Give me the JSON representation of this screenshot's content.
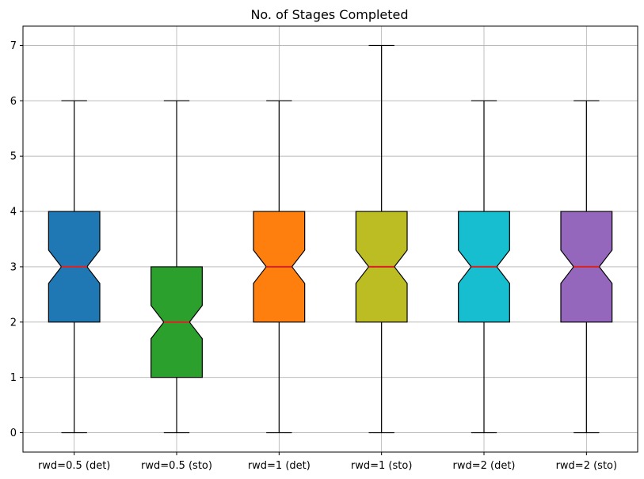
{
  "chart_data": {
    "type": "boxplot",
    "title": "No. of Stages Completed",
    "xlabel": "",
    "ylabel": "",
    "ylim": [
      -0.35,
      7.35
    ],
    "yticks": [
      0,
      1,
      2,
      3,
      4,
      5,
      6,
      7
    ],
    "grid": true,
    "notched": true,
    "median_color": "#d62728",
    "categories": [
      "rwd=0.5 (det)",
      "rwd=0.5 (sto)",
      "rwd=1 (det)",
      "rwd=1 (sto)",
      "rwd=2 (det)",
      "rwd=2 (sto)"
    ],
    "boxes": [
      {
        "label": "rwd=0.5 (det)",
        "whislo": 0,
        "q1": 2,
        "med": 3,
        "q3": 4,
        "whishi": 6,
        "notch_lo": 2.7,
        "notch_hi": 3.3,
        "color": "#1f77b4"
      },
      {
        "label": "rwd=0.5 (sto)",
        "whislo": 0,
        "q1": 1,
        "med": 2,
        "q3": 3,
        "whishi": 6,
        "notch_lo": 1.7,
        "notch_hi": 2.3,
        "color": "#2ca02c"
      },
      {
        "label": "rwd=1 (det)",
        "whislo": 0,
        "q1": 2,
        "med": 3,
        "q3": 4,
        "whishi": 6,
        "notch_lo": 2.7,
        "notch_hi": 3.3,
        "color": "#ff7f0e"
      },
      {
        "label": "rwd=1 (sto)",
        "whislo": 0,
        "q1": 2,
        "med": 3,
        "q3": 4,
        "whishi": 7,
        "notch_lo": 2.7,
        "notch_hi": 3.3,
        "color": "#bcbd22"
      },
      {
        "label": "rwd=2 (det)",
        "whislo": 0,
        "q1": 2,
        "med": 3,
        "q3": 4,
        "whishi": 6,
        "notch_lo": 2.7,
        "notch_hi": 3.3,
        "color": "#17becf"
      },
      {
        "label": "rwd=2 (sto)",
        "whislo": 0,
        "q1": 2,
        "med": 3,
        "q3": 4,
        "whishi": 6,
        "notch_lo": 2.7,
        "notch_hi": 3.3,
        "color": "#9467bd"
      }
    ]
  }
}
